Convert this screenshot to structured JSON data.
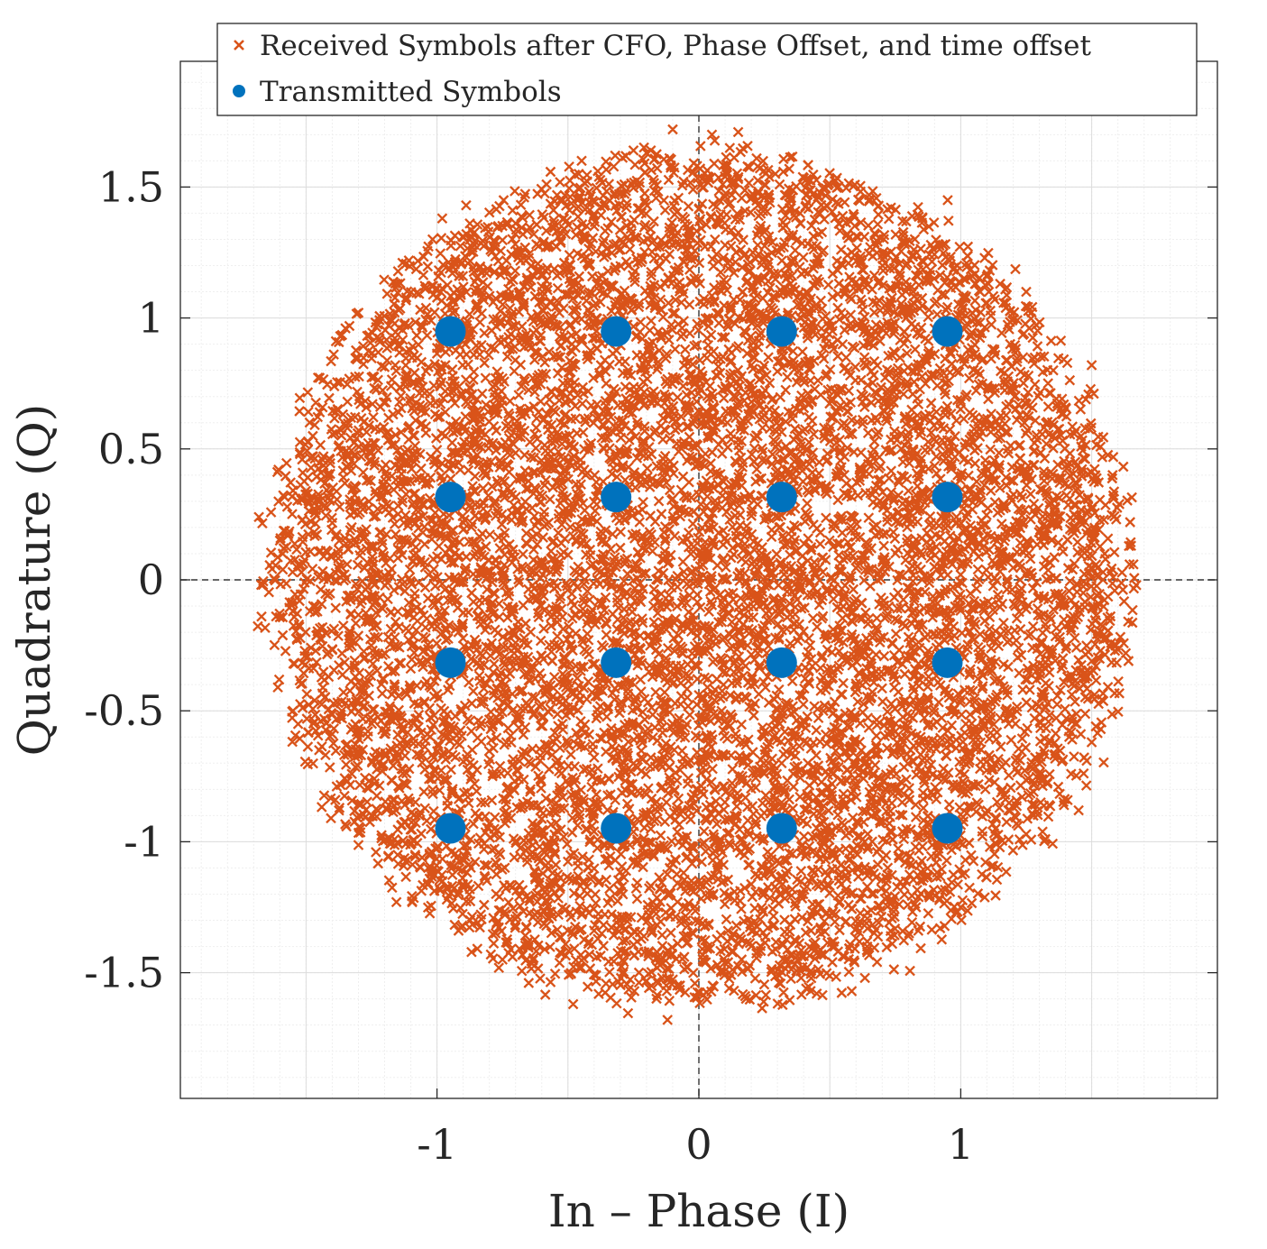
{
  "chart_data": {
    "type": "scatter",
    "xlabel": "In – Phase (I)",
    "ylabel": "Quadrature (Q)",
    "xlim": [
      -1.98,
      1.98
    ],
    "ylim": [
      -1.98,
      1.98
    ],
    "x_ticks": [
      -1,
      0,
      1
    ],
    "x_tick_labels": [
      "-1",
      "0",
      "1"
    ],
    "y_ticks": [
      -1.5,
      -1,
      -0.5,
      0,
      0.5,
      1,
      1.5
    ],
    "y_tick_labels": [
      "-1.5",
      "-1",
      "-0.5",
      "0",
      "0.5",
      "1",
      "1.5"
    ],
    "grid": true,
    "minor_grid": true,
    "reference_lines": {
      "x": 0,
      "y": 0,
      "style": "dashed"
    },
    "legend_position": "top",
    "series": [
      {
        "name": "Received Symbols after CFO, Phase Offset, and time offset",
        "marker": "x",
        "color": "#D95319",
        "distribution": "approximately uniform disc centered at (0, 0)",
        "radius": 1.65,
        "point_count": 10000,
        "sample_points": [
          {
            "x": -1.68,
            "y": 0.24
          },
          {
            "x": -1.6,
            "y": 0.15
          },
          {
            "x": -1.55,
            "y": -0.12
          },
          {
            "x": -1.55,
            "y": -0.5
          },
          {
            "x": -1.45,
            "y": -0.65
          },
          {
            "x": -1.3,
            "y": 1.02
          },
          {
            "x": -1.15,
            "y": 1.13
          },
          {
            "x": -0.98,
            "y": 1.38
          },
          {
            "x": -0.52,
            "y": 1.45
          },
          {
            "x": -0.1,
            "y": 1.72
          },
          {
            "x": 0.05,
            "y": 1.7
          },
          {
            "x": 0.15,
            "y": 1.71
          },
          {
            "x": 0.95,
            "y": 1.45
          },
          {
            "x": 1.25,
            "y": 1.1
          },
          {
            "x": 1.5,
            "y": 0.82
          },
          {
            "x": 1.58,
            "y": 0.4
          },
          {
            "x": 1.65,
            "y": 0.13
          },
          {
            "x": 1.67,
            "y": -0.02
          },
          {
            "x": 1.63,
            "y": -0.28
          },
          {
            "x": 1.5,
            "y": -0.62
          },
          {
            "x": 1.45,
            "y": -0.88
          },
          {
            "x": 1.0,
            "y": -1.25
          },
          {
            "x": 0.8,
            "y": -1.36
          },
          {
            "x": 0.45,
            "y": -1.58
          },
          {
            "x": 0.18,
            "y": -1.6
          },
          {
            "x": -0.12,
            "y": -1.68
          },
          {
            "x": -0.48,
            "y": -1.62
          },
          {
            "x": -0.75,
            "y": -1.45
          },
          {
            "x": -1.15,
            "y": -1.05
          },
          {
            "x": -1.25,
            "y": -0.9
          }
        ]
      },
      {
        "name": "Transmitted Symbols",
        "marker": "filled-circle",
        "color": "#0072BD",
        "points": [
          {
            "x": -0.9487,
            "y": 0.9487
          },
          {
            "x": -0.3162,
            "y": 0.9487
          },
          {
            "x": 0.3162,
            "y": 0.9487
          },
          {
            "x": 0.9487,
            "y": 0.9487
          },
          {
            "x": -0.9487,
            "y": 0.3162
          },
          {
            "x": -0.3162,
            "y": 0.3162
          },
          {
            "x": 0.3162,
            "y": 0.3162
          },
          {
            "x": 0.9487,
            "y": 0.3162
          },
          {
            "x": -0.9487,
            "y": -0.3162
          },
          {
            "x": -0.3162,
            "y": -0.3162
          },
          {
            "x": 0.3162,
            "y": -0.3162
          },
          {
            "x": 0.9487,
            "y": -0.3162
          },
          {
            "x": -0.9487,
            "y": -0.9487
          },
          {
            "x": -0.3162,
            "y": -0.9487
          },
          {
            "x": 0.3162,
            "y": -0.9487
          },
          {
            "x": 0.9487,
            "y": -0.9487
          }
        ]
      }
    ]
  },
  "colors": {
    "received": "#D95319",
    "transmitted": "#0072BD",
    "axis": "#262626",
    "grid_major": "#dcdcdc",
    "grid_minor": "#efefef"
  }
}
